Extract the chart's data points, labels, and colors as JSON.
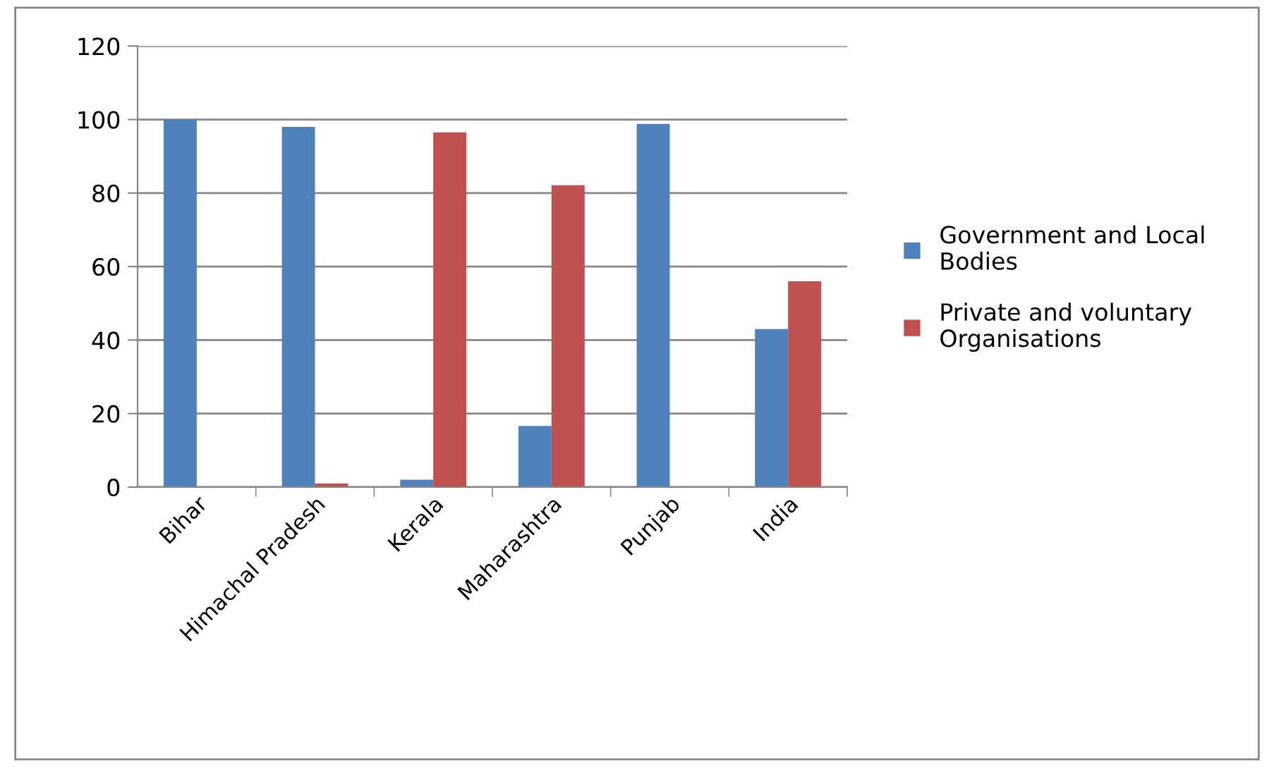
{
  "chart_data": {
    "type": "bar",
    "categories": [
      "Bihar",
      "Himachal Pradesh",
      "Kerala",
      "Maharashtra",
      "Punjab",
      "India"
    ],
    "series": [
      {
        "name": "Government and Local Bodies",
        "color": "#4f81bd",
        "values": [
          100,
          98,
          2,
          16.6,
          98.8,
          43
        ]
      },
      {
        "name": "Private and voluntary Organisations",
        "color": "#c0504d",
        "values": [
          0,
          1,
          96.5,
          82.1,
          0,
          56
        ]
      }
    ],
    "ylim": [
      0,
      120
    ],
    "yticks": [
      0,
      20,
      40,
      60,
      80,
      100,
      120
    ],
    "grid": "y",
    "legend": "right"
  }
}
